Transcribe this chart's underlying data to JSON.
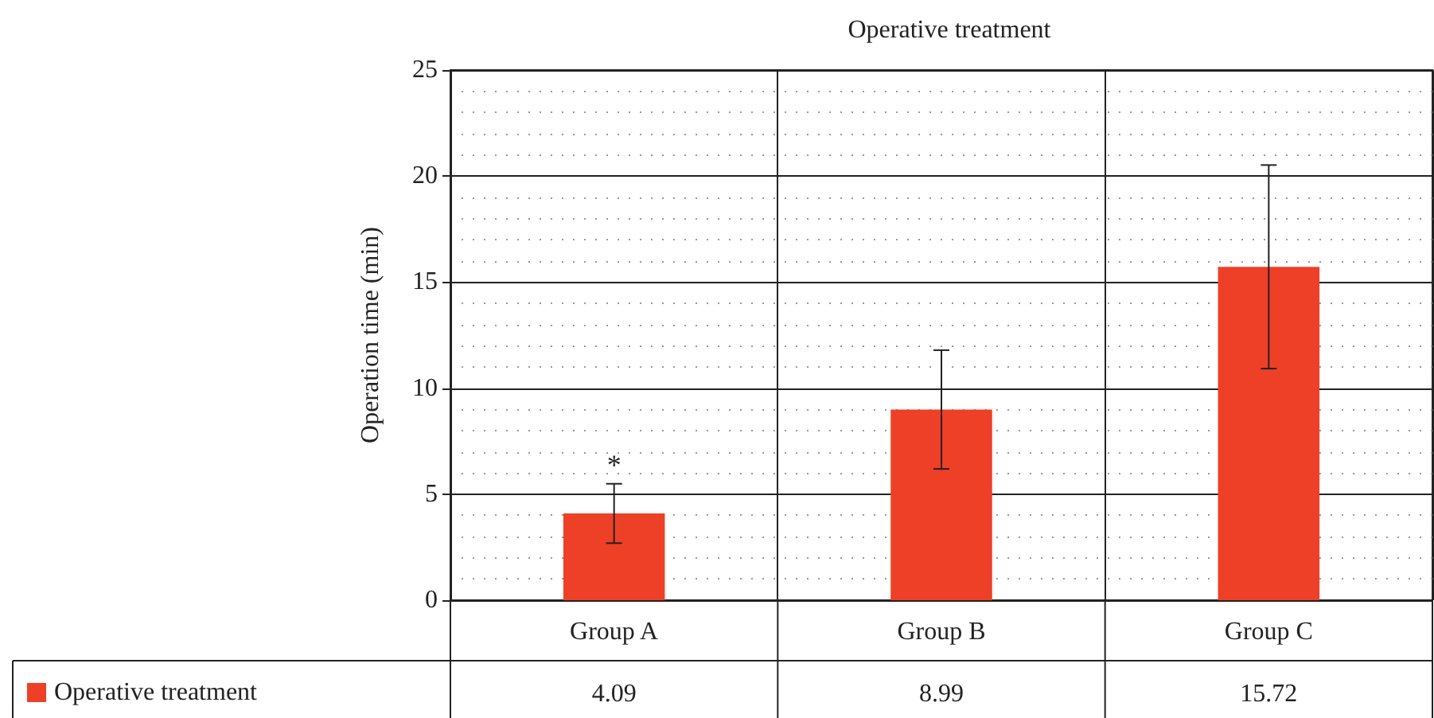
{
  "chart_data": {
    "type": "bar",
    "title": "Operative treatment",
    "ylabel": "Operation time (min)",
    "categories": [
      "Group A",
      "Group B",
      "Group C"
    ],
    "series": [
      {
        "name": "Operative treatment",
        "color": "#ee4027",
        "values": [
          4.09,
          8.99,
          15.72
        ],
        "errors": [
          1.4,
          2.8,
          4.8
        ]
      }
    ],
    "ylim": [
      0,
      25
    ],
    "yticks": [
      0,
      5,
      10,
      15,
      20,
      25
    ],
    "grid": true,
    "legend": "bottom left",
    "data_labels": true,
    "annotations": [
      {
        "text": "*",
        "x": "Group A",
        "y": 4.09
      }
    ]
  }
}
